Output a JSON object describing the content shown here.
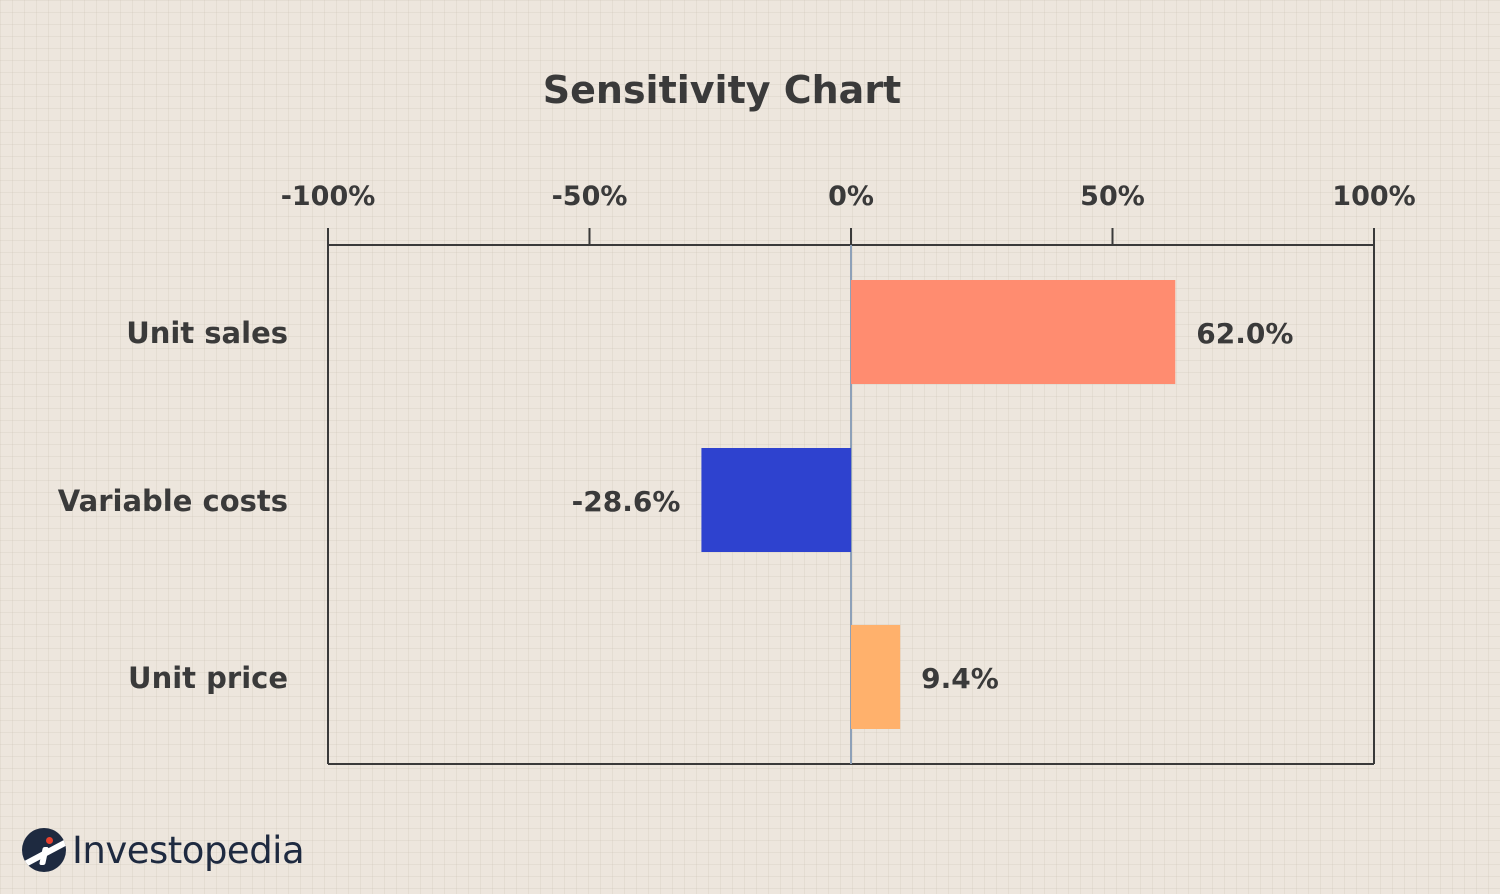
{
  "chart_data": {
    "type": "bar",
    "orientation": "horizontal",
    "title": "Sensitivity Chart",
    "categories": [
      "Unit sales",
      "Variable costs",
      "Unit price"
    ],
    "values": [
      62.0,
      -28.6,
      9.4
    ],
    "value_labels": [
      "62.0%",
      "-28.6%",
      "9.4%"
    ],
    "colors": [
      "#ff8c70",
      "#2e42cf",
      "#ffb16c"
    ],
    "x_ticks": [
      -100,
      -50,
      0,
      50,
      100
    ],
    "x_tick_labels": [
      "-100%",
      "-50%",
      "0%",
      "50%",
      "100%"
    ],
    "xlim": [
      -100,
      100
    ],
    "x_axis_position": "top",
    "grid": false,
    "legend": "none"
  },
  "branding": {
    "logo_text": "Investopedia"
  },
  "colors": {
    "background": "#ede6dd",
    "axis": "#3a3a3a",
    "zero_line": "#8da0b8",
    "text": "#3a3a3a",
    "logo": "#1e2a40"
  }
}
